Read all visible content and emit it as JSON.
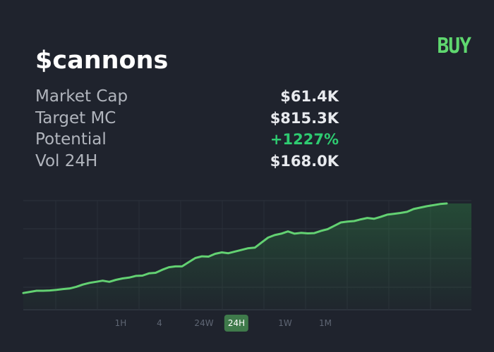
{
  "header": {
    "ticker": "$cannons",
    "buy_label": "BUY"
  },
  "stats": [
    {
      "label": "Market Cap",
      "value": "$61.4K",
      "tone": "neutral"
    },
    {
      "label": "Target MC",
      "value": "$815.3K",
      "tone": "neutral"
    },
    {
      "label": "Potential",
      "value": "+1227%",
      "tone": "positive"
    },
    {
      "label": "Vol 24H",
      "value": "$168.0K",
      "tone": "neutral"
    }
  ],
  "timeframes": [
    {
      "label": "1H",
      "active": false
    },
    {
      "label": "4",
      "active": false
    },
    {
      "label": "24W",
      "active": false
    },
    {
      "label": "24H",
      "active": true
    },
    {
      "label": "1W",
      "active": false
    },
    {
      "label": "1M",
      "active": false
    }
  ],
  "colors": {
    "background": "#1f232d",
    "accent_green": "#5fd76f",
    "positive": "#2ecc71",
    "line": "#63d172",
    "active_tab": "#3f7a4b"
  },
  "chart_data": {
    "type": "line",
    "grid": true,
    "x": [
      0,
      1,
      2,
      3,
      4,
      5,
      6,
      7,
      8,
      9,
      10,
      11,
      12,
      13,
      14,
      15,
      16,
      17,
      18,
      19,
      20,
      21,
      22,
      23,
      24,
      25,
      26,
      27,
      28,
      29,
      30,
      31,
      32,
      33,
      34,
      35,
      36,
      37,
      38,
      39,
      40,
      41,
      42,
      43,
      44,
      45,
      46,
      47,
      48,
      49,
      50,
      51,
      52,
      53,
      54,
      55,
      56,
      57,
      58,
      59,
      60,
      61,
      62,
      63,
      64
    ],
    "y": [
      0.0,
      0.04,
      0.08,
      0.08,
      0.09,
      0.11,
      0.14,
      0.16,
      0.22,
      0.3,
      0.36,
      0.4,
      0.44,
      0.4,
      0.47,
      0.52,
      0.55,
      0.61,
      0.62,
      0.7,
      0.72,
      0.83,
      0.92,
      0.95,
      0.95,
      1.1,
      1.25,
      1.31,
      1.3,
      1.4,
      1.45,
      1.42,
      1.48,
      1.54,
      1.6,
      1.62,
      1.8,
      1.98,
      2.07,
      2.12,
      2.2,
      2.12,
      2.15,
      2.13,
      2.14,
      2.22,
      2.28,
      2.4,
      2.52,
      2.55,
      2.57,
      2.63,
      2.68,
      2.65,
      2.72,
      2.8,
      2.83,
      2.86,
      2.9,
      3.0,
      3.05,
      3.1,
      3.14,
      3.18,
      3.2
    ],
    "ylim": [
      -0.6,
      3.3
    ]
  }
}
